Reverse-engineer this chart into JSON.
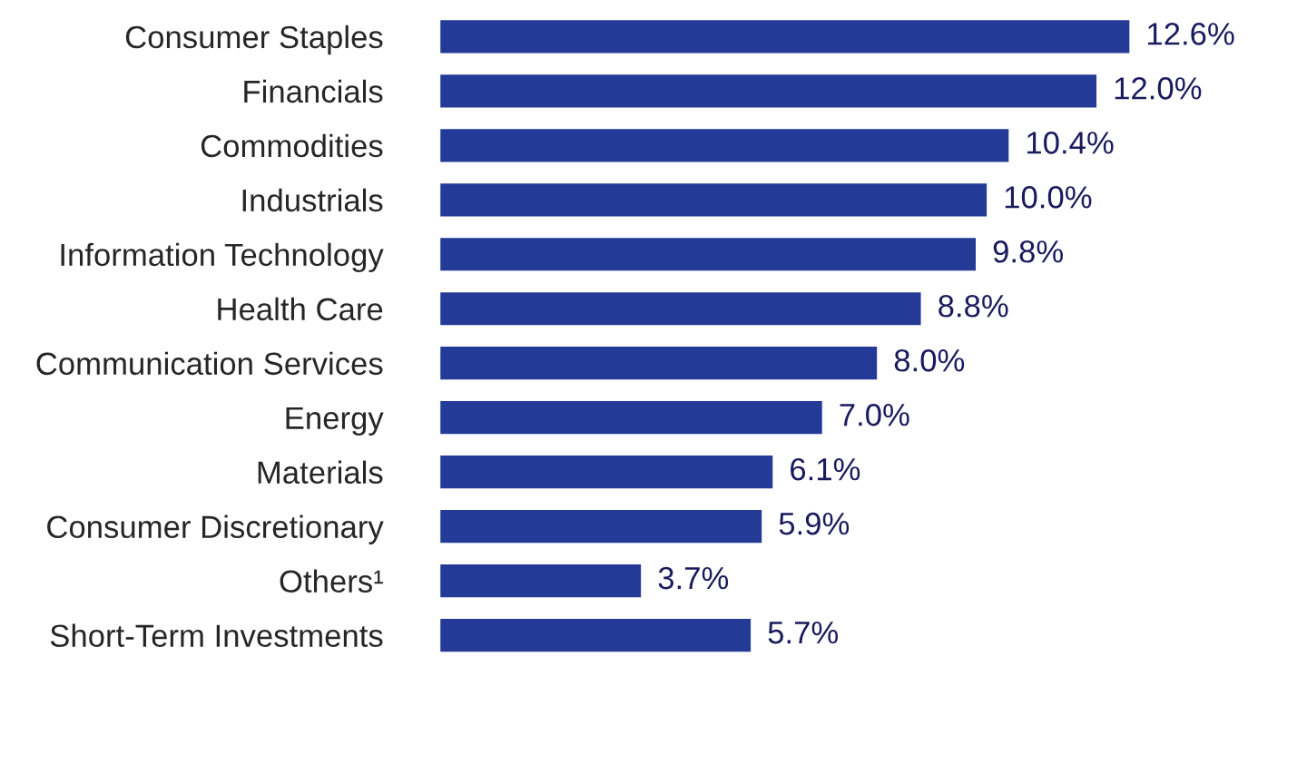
{
  "chart_data": {
    "type": "bar",
    "orientation": "horizontal",
    "categories": [
      "Consumer Staples",
      "Financials",
      "Commodities",
      "Industrials",
      "Information Technology",
      "Health Care",
      "Communication Services",
      "Energy",
      "Materials",
      "Consumer Discretionary",
      "Others¹",
      "Short-Term Investments"
    ],
    "values": [
      12.6,
      12.0,
      10.4,
      10.0,
      9.8,
      8.8,
      8.0,
      7.0,
      6.1,
      5.9,
      3.7,
      5.7
    ],
    "value_labels": [
      "12.6%",
      "12.0%",
      "10.4%",
      "10.0%",
      "9.8%",
      "8.8%",
      "8.0%",
      "7.0%",
      "6.1%",
      "5.9%",
      "3.7%",
      "5.7%"
    ],
    "color": "#233a96",
    "grid": false,
    "legend": false
  }
}
